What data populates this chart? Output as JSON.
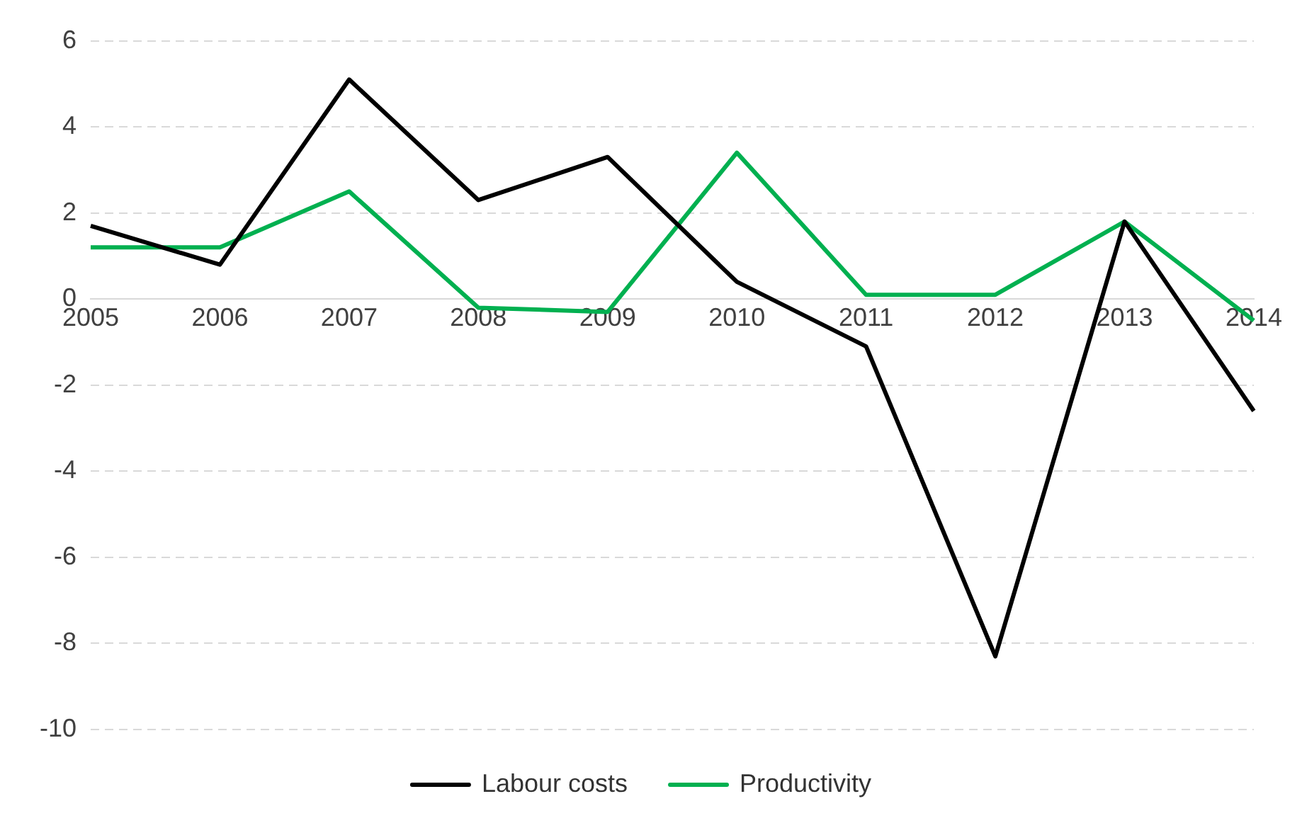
{
  "chart_data": {
    "type": "line",
    "categories": [
      "2005",
      "2006",
      "2007",
      "2008",
      "2009",
      "2010",
      "2011",
      "2012",
      "2013",
      "2014"
    ],
    "series": [
      {
        "name": "Labour costs",
        "color": "#000000",
        "values": [
          1.7,
          0.8,
          5.1,
          2.3,
          3.3,
          0.4,
          -1.1,
          -8.3,
          1.8,
          -2.6
        ]
      },
      {
        "name": "Productivity",
        "color": "#00b050",
        "values": [
          1.2,
          1.2,
          2.5,
          -0.2,
          -0.3,
          3.4,
          0.1,
          0.1,
          1.8,
          -0.5
        ]
      }
    ],
    "ylim": [
      -10,
      6
    ],
    "yticks": [
      -10,
      -8,
      -6,
      -4,
      -2,
      0,
      2,
      4,
      6
    ],
    "grid": "y",
    "legend": "bottom",
    "marker": "none",
    "line_style": "solid"
  }
}
